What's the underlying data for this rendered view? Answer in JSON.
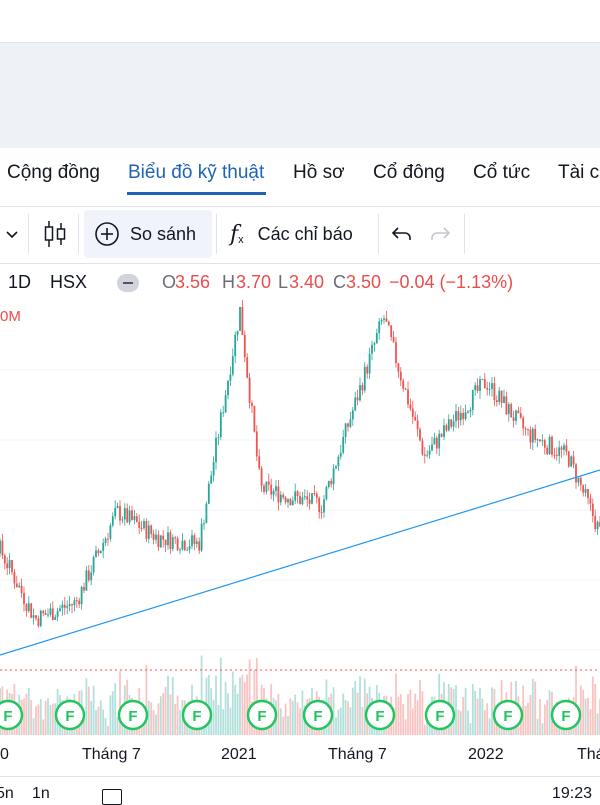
{
  "tabs": [
    "Cộng đồng",
    "Biểu đồ kỹ thuật",
    "Hồ sơ",
    "Cổ đông",
    "Cổ tức",
    "Tài c"
  ],
  "active_tab": "Biểu đồ kỹ thuật",
  "toolbar": {
    "compare_label": "So sánh",
    "indicators_label": "Các chỉ báo"
  },
  "legend": {
    "interval": "1D",
    "exchange": "HSX",
    "o_label": "O",
    "o_value": "3.56",
    "h_label": "H",
    "h_value": "3.70",
    "l_label": "L",
    "l_value": "3.40",
    "c_label": "C",
    "c_value": "3.50",
    "change": "−0.04 (−1.13%)",
    "volume_fragment": "0M"
  },
  "colors": {
    "up": "#26a69a",
    "down": "#ef5350",
    "trendline": "#2196f3",
    "accent": "#1e63b7",
    "event_marker": "#22c55e"
  },
  "chart_data": {
    "type": "candlestick",
    "x_ticks": [
      "0",
      "Tháng 7",
      "2021",
      "Tháng 7",
      "2022",
      "Thá"
    ],
    "event_marker_label": "F",
    "trendline": true,
    "price_anchors_relative": [
      {
        "t": "2020-01",
        "p": 0.3
      },
      {
        "t": "2020-03",
        "p": 0.05
      },
      {
        "t": "2020-05",
        "p": 0.1
      },
      {
        "t": "2020-07",
        "p": 0.38
      },
      {
        "t": "2020-09",
        "p": 0.3
      },
      {
        "t": "2020-11",
        "p": 0.28
      },
      {
        "t": "2021-01",
        "p": 1.0
      },
      {
        "t": "2021-02",
        "p": 0.45
      },
      {
        "t": "2021-05",
        "p": 0.4
      },
      {
        "t": "2021-08",
        "p": 0.98
      },
      {
        "t": "2021-10",
        "p": 0.55
      },
      {
        "t": "2022-01",
        "p": 0.78
      },
      {
        "t": "2022-03",
        "p": 0.62
      },
      {
        "t": "2022-05",
        "p": 0.55
      },
      {
        "t": "2022-07",
        "p": 0.25
      }
    ]
  },
  "bottom": {
    "left_fragment": "5n",
    "mid_fragment": "1n",
    "time_fragment": "19:23"
  }
}
